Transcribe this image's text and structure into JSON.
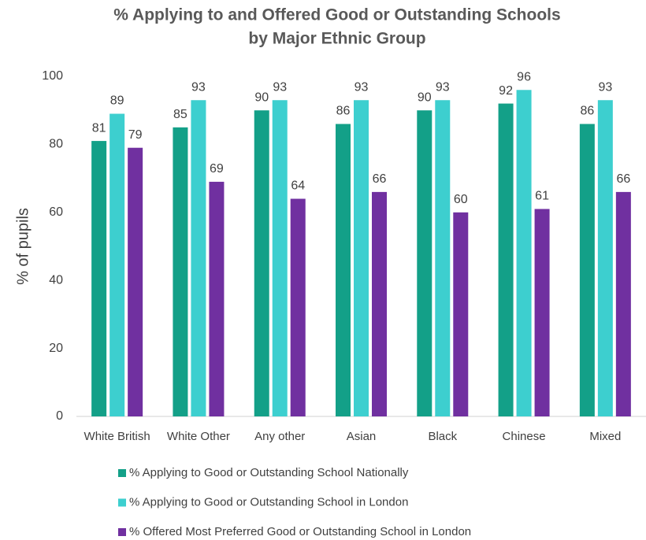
{
  "chart_data": {
    "type": "bar",
    "title": [
      "% Applying to and Offered Good or Outstanding Schools",
      "by Major Ethnic Group"
    ],
    "y_label": "% of pupils",
    "categories": [
      "White British",
      "White Other",
      "Any other",
      "Asian",
      "Black",
      "Chinese",
      "Mixed"
    ],
    "series": [
      {
        "name": "% Applying to Good or Outstanding School Nationally",
        "color": "#13a088",
        "values": [
          81,
          85,
          90,
          86,
          90,
          92,
          86
        ]
      },
      {
        "name": "% Applying to Good or Outstanding School in London",
        "color": "#3dcfcf",
        "values": [
          89,
          93,
          93,
          93,
          93,
          96,
          93
        ]
      },
      {
        "name": "% Offered Most Preferred Good or Outstanding School in London",
        "color": "#7030a0",
        "values": [
          79,
          69,
          64,
          66,
          60,
          61,
          66
        ]
      }
    ],
    "ylim": [
      0,
      100
    ],
    "yticks": [
      0,
      20,
      40,
      60,
      80,
      100
    ],
    "grid": false
  }
}
